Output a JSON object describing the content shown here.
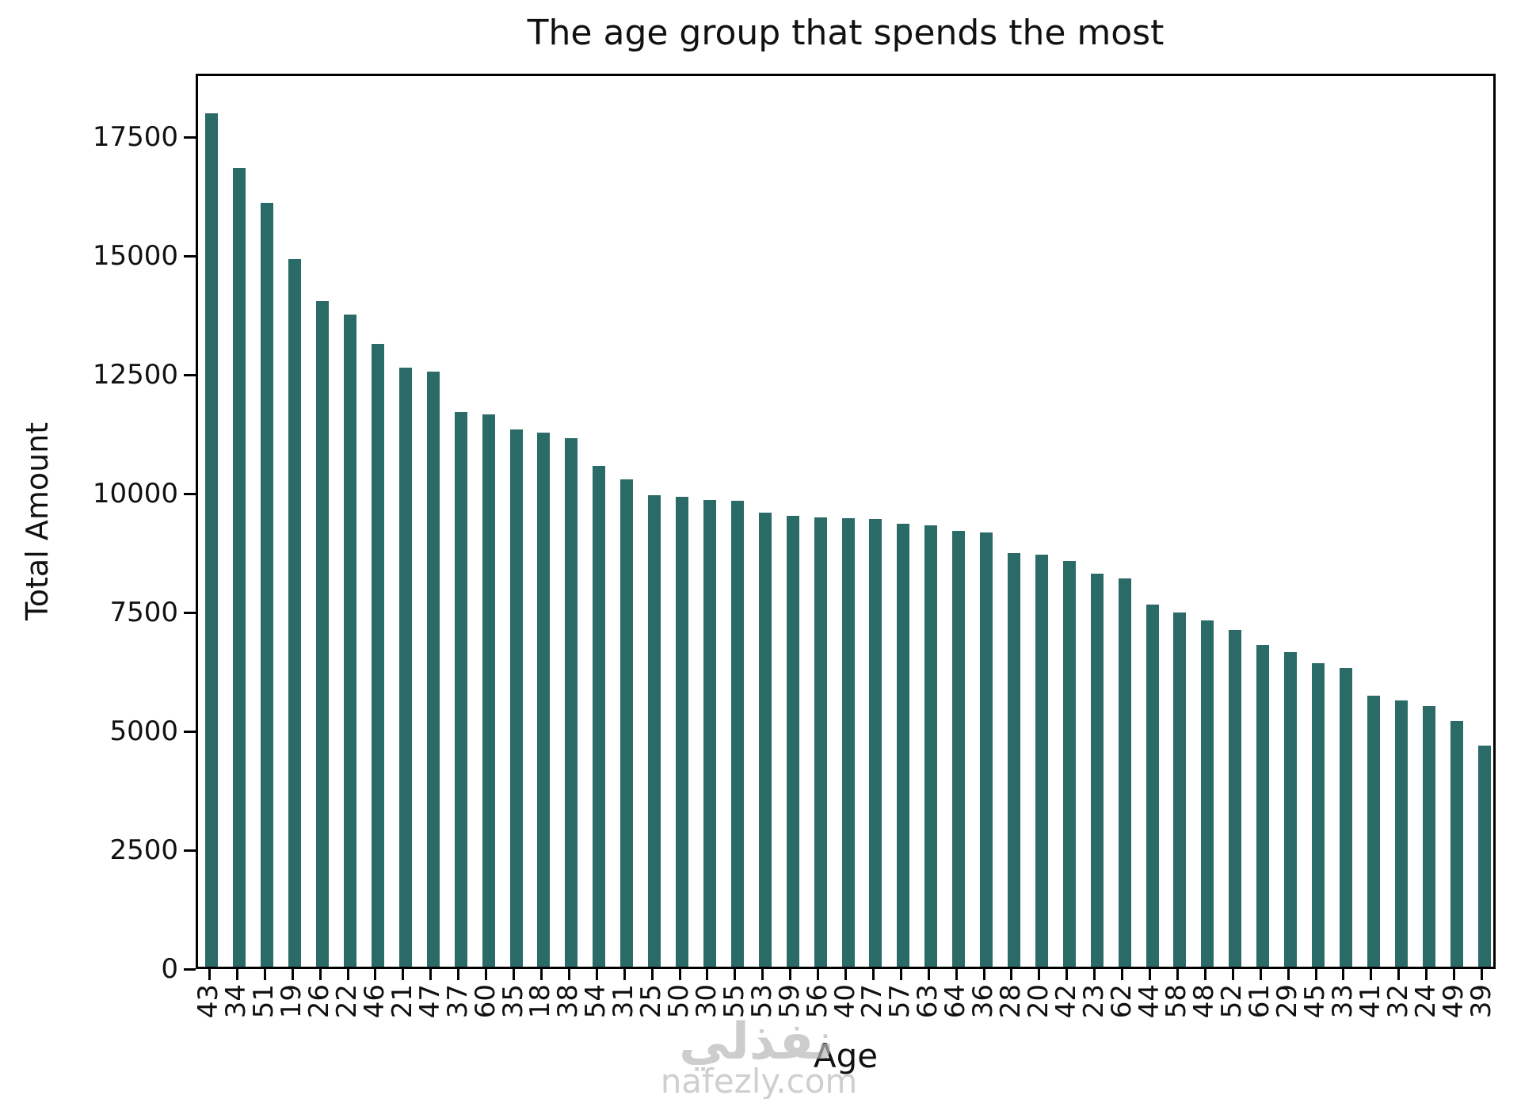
{
  "title": "The age group that spends the most",
  "watermark": {
    "arabic": "نفذلي",
    "domain": "nafezly.com"
  },
  "chart_data": {
    "type": "bar",
    "title": "The age group that spends the most",
    "xlabel": "Age",
    "ylabel": "Total Amount",
    "categories": [
      "43",
      "34",
      "51",
      "19",
      "26",
      "22",
      "46",
      "21",
      "47",
      "37",
      "60",
      "35",
      "18",
      "38",
      "54",
      "31",
      "25",
      "50",
      "30",
      "55",
      "53",
      "59",
      "56",
      "40",
      "27",
      "57",
      "63",
      "64",
      "36",
      "28",
      "20",
      "42",
      "23",
      "62",
      "44",
      "58",
      "48",
      "52",
      "61",
      "29",
      "45",
      "33",
      "41",
      "32",
      "24",
      "49",
      "39"
    ],
    "values": [
      17950,
      16800,
      16070,
      14890,
      14000,
      13720,
      13100,
      12600,
      12520,
      11670,
      11620,
      11300,
      11240,
      11120,
      10540,
      10250,
      9920,
      9890,
      9820,
      9800,
      9550,
      9490,
      9450,
      9430,
      9420,
      9320,
      9280,
      9170,
      9130,
      8700,
      8670,
      8530,
      8270,
      8170,
      7620,
      7450,
      7280,
      7080,
      6770,
      6620,
      6380,
      6280,
      5700,
      5600,
      5480,
      5170,
      4650
    ],
    "ylim": [
      0,
      18840
    ],
    "yticks": [
      0,
      2500,
      5000,
      7500,
      10000,
      12500,
      15000,
      17500
    ],
    "bar_color": "#2a6b68",
    "grid": false,
    "legend": false
  }
}
